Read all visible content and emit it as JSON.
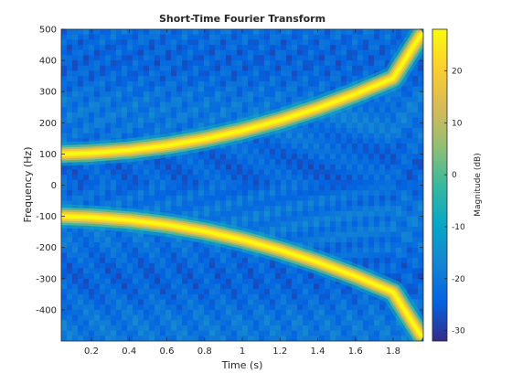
{
  "chart_data": {
    "type": "heatmap",
    "title": "Short-Time Fourier Transform",
    "xlabel": "Time (s)",
    "ylabel": "Frequency (Hz)",
    "xlim": [
      0.04,
      1.96
    ],
    "ylim": [
      -500,
      500
    ],
    "xticks": [
      0.2,
      0.4,
      0.6,
      0.8,
      1,
      1.2,
      1.4,
      1.6,
      1.8
    ],
    "xtick_labels": [
      "0.2",
      "0.4",
      "0.6",
      "0.8",
      "1",
      "1.2",
      "1.4",
      "1.6",
      "1.8"
    ],
    "yticks": [
      500,
      400,
      300,
      200,
      100,
      0,
      -100,
      -200,
      -300,
      -400
    ],
    "ytick_labels": [
      "500",
      "400",
      "300",
      "200",
      "100",
      "0",
      "-100",
      "-200",
      "-300",
      "-400"
    ],
    "colorbar": {
      "label": "Magnitude (dB)",
      "range": [
        -32,
        28
      ],
      "ticks": [
        20,
        10,
        0,
        -10,
        -20,
        -30
      ],
      "tick_labels": [
        "20",
        "10",
        "0",
        "-10",
        "-20",
        "-30"
      ],
      "colormap": "parula",
      "position": "right"
    },
    "series": [
      {
        "description": "Chirp ridge (positive frequency)",
        "x": [
          0.05,
          0.2,
          0.4,
          0.6,
          0.8,
          1.0,
          1.2,
          1.4,
          1.6,
          1.8,
          1.95
        ],
        "y": [
          100,
          103,
          112,
          127,
          148,
          175,
          208,
          247,
          292,
          343,
          485
        ]
      },
      {
        "description": "Chirp ridge (negative frequency)",
        "x": [
          0.05,
          0.2,
          0.4,
          0.6,
          0.8,
          1.0,
          1.2,
          1.4,
          1.6,
          1.8,
          1.95
        ],
        "y": [
          -100,
          -103,
          -112,
          -127,
          -148,
          -175,
          -208,
          -247,
          -292,
          -343,
          -485
        ]
      }
    ],
    "ridge_peak_db": 28,
    "background_db": -22,
    "grid": false
  }
}
